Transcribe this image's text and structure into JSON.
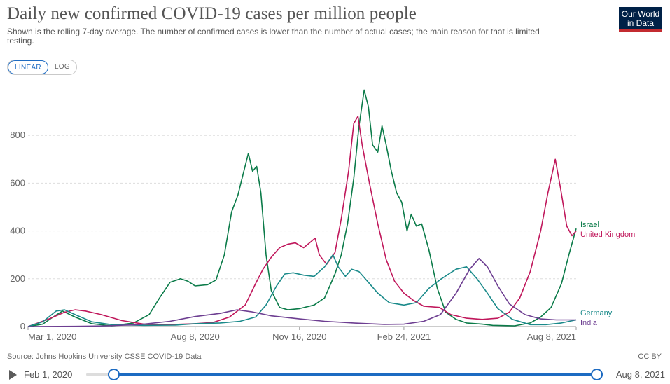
{
  "header": {
    "title": "Daily new confirmed COVID-19 cases per million people",
    "subtitle": "Shown is the rolling 7-day average. The number of confirmed cases is lower than the number of actual cases; the main reason for that is limited testing.",
    "logo": "Our World in Data"
  },
  "controls": {
    "linear_label": "LINEAR",
    "log_label": "LOG"
  },
  "footer": {
    "source": "Source: Johns Hopkins University CSSE COVID-19 Data",
    "license": "CC BY"
  },
  "timeline": {
    "start_label": "Feb 1, 2020",
    "end_label": "Aug 8, 2021"
  },
  "colors": {
    "Israel": "#0b7b49",
    "United Kingdom": "#c0175b",
    "Germany": "#1a8a8a",
    "India": "#6d3e91",
    "grid": "#dddddd",
    "axis_text": "#666666"
  },
  "chart_data": {
    "type": "line",
    "title": "Daily new confirmed COVID-19 cases per million people",
    "xlabel": "",
    "ylabel": "",
    "ylim": [
      0,
      1000
    ],
    "yticks": [
      0,
      200,
      400,
      600,
      800
    ],
    "xlim": [
      "2020-03-01",
      "2021-08-08"
    ],
    "xticks": [
      {
        "date": "2020-03-01",
        "label": "Mar 1, 2020"
      },
      {
        "date": "2020-08-08",
        "label": "Aug 8, 2020"
      },
      {
        "date": "2020-11-16",
        "label": "Nov 16, 2020"
      },
      {
        "date": "2021-02-24",
        "label": "Feb 24, 2021"
      },
      {
        "date": "2021-08-08",
        "label": "Aug 8, 2021"
      }
    ],
    "grid": true,
    "legend": "right-end labels",
    "series": [
      {
        "name": "Israel",
        "points": [
          [
            "2020-03-01",
            0
          ],
          [
            "2020-03-15",
            10
          ],
          [
            "2020-03-25",
            40
          ],
          [
            "2020-04-03",
            65
          ],
          [
            "2020-04-15",
            40
          ],
          [
            "2020-05-01",
            12
          ],
          [
            "2020-05-20",
            3
          ],
          [
            "2020-06-10",
            15
          ],
          [
            "2020-06-25",
            50
          ],
          [
            "2020-07-05",
            120
          ],
          [
            "2020-07-15",
            185
          ],
          [
            "2020-07-25",
            200
          ],
          [
            "2020-08-01",
            190
          ],
          [
            "2020-08-08",
            170
          ],
          [
            "2020-08-20",
            175
          ],
          [
            "2020-08-28",
            195
          ],
          [
            "2020-09-05",
            300
          ],
          [
            "2020-09-12",
            480
          ],
          [
            "2020-09-18",
            550
          ],
          [
            "2020-09-22",
            620
          ],
          [
            "2020-09-28",
            725
          ],
          [
            "2020-10-02",
            650
          ],
          [
            "2020-10-06",
            670
          ],
          [
            "2020-10-10",
            560
          ],
          [
            "2020-10-15",
            300
          ],
          [
            "2020-10-20",
            150
          ],
          [
            "2020-10-28",
            80
          ],
          [
            "2020-11-05",
            70
          ],
          [
            "2020-11-16",
            75
          ],
          [
            "2020-11-30",
            90
          ],
          [
            "2020-12-10",
            120
          ],
          [
            "2020-12-20",
            220
          ],
          [
            "2020-12-26",
            300
          ],
          [
            "2021-01-01",
            430
          ],
          [
            "2021-01-07",
            620
          ],
          [
            "2021-01-12",
            840
          ],
          [
            "2021-01-17",
            990
          ],
          [
            "2021-01-21",
            920
          ],
          [
            "2021-01-25",
            760
          ],
          [
            "2021-01-30",
            730
          ],
          [
            "2021-02-03",
            840
          ],
          [
            "2021-02-07",
            760
          ],
          [
            "2021-02-12",
            650
          ],
          [
            "2021-02-17",
            560
          ],
          [
            "2021-02-22",
            520
          ],
          [
            "2021-02-27",
            400
          ],
          [
            "2021-03-03",
            470
          ],
          [
            "2021-03-08",
            420
          ],
          [
            "2021-03-13",
            430
          ],
          [
            "2021-03-20",
            320
          ],
          [
            "2021-03-28",
            160
          ],
          [
            "2021-04-05",
            60
          ],
          [
            "2021-04-15",
            30
          ],
          [
            "2021-04-25",
            15
          ],
          [
            "2021-05-10",
            10
          ],
          [
            "2021-05-20",
            5
          ],
          [
            "2021-06-10",
            3
          ],
          [
            "2021-06-25",
            15
          ],
          [
            "2021-07-05",
            40
          ],
          [
            "2021-07-15",
            80
          ],
          [
            "2021-07-25",
            180
          ],
          [
            "2021-08-01",
            300
          ],
          [
            "2021-08-08",
            410
          ]
        ]
      },
      {
        "name": "United Kingdom",
        "points": [
          [
            "2020-03-01",
            0
          ],
          [
            "2020-03-20",
            30
          ],
          [
            "2020-04-05",
            60
          ],
          [
            "2020-04-15",
            70
          ],
          [
            "2020-04-25",
            65
          ],
          [
            "2020-05-10",
            50
          ],
          [
            "2020-05-30",
            25
          ],
          [
            "2020-06-20",
            10
          ],
          [
            "2020-07-15",
            8
          ],
          [
            "2020-08-08",
            12
          ],
          [
            "2020-08-25",
            17
          ],
          [
            "2020-09-10",
            40
          ],
          [
            "2020-09-25",
            90
          ],
          [
            "2020-10-05",
            180
          ],
          [
            "2020-10-12",
            240
          ],
          [
            "2020-10-20",
            290
          ],
          [
            "2020-10-28",
            330
          ],
          [
            "2020-11-05",
            345
          ],
          [
            "2020-11-12",
            350
          ],
          [
            "2020-11-20",
            330
          ],
          [
            "2020-11-27",
            355
          ],
          [
            "2020-12-01",
            370
          ],
          [
            "2020-12-05",
            300
          ],
          [
            "2020-12-12",
            260
          ],
          [
            "2020-12-20",
            310
          ],
          [
            "2020-12-26",
            450
          ],
          [
            "2021-01-02",
            650
          ],
          [
            "2021-01-07",
            850
          ],
          [
            "2021-01-11",
            880
          ],
          [
            "2021-01-15",
            760
          ],
          [
            "2021-01-22",
            600
          ],
          [
            "2021-01-30",
            430
          ],
          [
            "2021-02-07",
            280
          ],
          [
            "2021-02-15",
            190
          ],
          [
            "2021-02-24",
            140
          ],
          [
            "2021-03-05",
            110
          ],
          [
            "2021-03-15",
            85
          ],
          [
            "2021-03-30",
            80
          ],
          [
            "2021-04-10",
            50
          ],
          [
            "2021-04-25",
            35
          ],
          [
            "2021-05-10",
            30
          ],
          [
            "2021-05-25",
            35
          ],
          [
            "2021-06-05",
            60
          ],
          [
            "2021-06-15",
            120
          ],
          [
            "2021-06-25",
            230
          ],
          [
            "2021-07-05",
            400
          ],
          [
            "2021-07-12",
            560
          ],
          [
            "2021-07-19",
            700
          ],
          [
            "2021-07-24",
            580
          ],
          [
            "2021-07-30",
            420
          ],
          [
            "2021-08-04",
            380
          ],
          [
            "2021-08-08",
            400
          ]
        ]
      },
      {
        "name": "Germany",
        "points": [
          [
            "2020-03-01",
            0
          ],
          [
            "2020-03-15",
            20
          ],
          [
            "2020-03-28",
            65
          ],
          [
            "2020-04-05",
            70
          ],
          [
            "2020-04-15",
            50
          ],
          [
            "2020-05-01",
            20
          ],
          [
            "2020-05-20",
            8
          ],
          [
            "2020-06-20",
            5
          ],
          [
            "2020-07-20",
            6
          ],
          [
            "2020-08-08",
            12
          ],
          [
            "2020-09-01",
            15
          ],
          [
            "2020-09-20",
            22
          ],
          [
            "2020-10-05",
            40
          ],
          [
            "2020-10-15",
            90
          ],
          [
            "2020-10-25",
            170
          ],
          [
            "2020-11-02",
            220
          ],
          [
            "2020-11-10",
            225
          ],
          [
            "2020-11-20",
            215
          ],
          [
            "2020-11-30",
            210
          ],
          [
            "2020-12-10",
            250
          ],
          [
            "2020-12-18",
            300
          ],
          [
            "2020-12-23",
            250
          ],
          [
            "2020-12-30",
            210
          ],
          [
            "2021-01-05",
            240
          ],
          [
            "2021-01-12",
            230
          ],
          [
            "2021-01-20",
            190
          ],
          [
            "2021-01-30",
            140
          ],
          [
            "2021-02-10",
            100
          ],
          [
            "2021-02-24",
            90
          ],
          [
            "2021-03-08",
            100
          ],
          [
            "2021-03-20",
            160
          ],
          [
            "2021-04-01",
            200
          ],
          [
            "2021-04-15",
            240
          ],
          [
            "2021-04-25",
            250
          ],
          [
            "2021-05-05",
            200
          ],
          [
            "2021-05-15",
            140
          ],
          [
            "2021-05-25",
            75
          ],
          [
            "2021-06-08",
            30
          ],
          [
            "2021-06-25",
            8
          ],
          [
            "2021-07-10",
            8
          ],
          [
            "2021-07-25",
            15
          ],
          [
            "2021-08-08",
            28
          ]
        ]
      },
      {
        "name": "India",
        "points": [
          [
            "2020-03-01",
            0
          ],
          [
            "2020-04-15",
            1
          ],
          [
            "2020-05-15",
            3
          ],
          [
            "2020-06-15",
            8
          ],
          [
            "2020-07-15",
            22
          ],
          [
            "2020-08-08",
            42
          ],
          [
            "2020-09-01",
            55
          ],
          [
            "2020-09-17",
            70
          ],
          [
            "2020-10-01",
            62
          ],
          [
            "2020-10-20",
            45
          ],
          [
            "2020-11-16",
            32
          ],
          [
            "2020-12-10",
            22
          ],
          [
            "2021-01-10",
            14
          ],
          [
            "2021-02-05",
            9
          ],
          [
            "2021-02-24",
            10
          ],
          [
            "2021-03-15",
            22
          ],
          [
            "2021-03-31",
            50
          ],
          [
            "2021-04-15",
            140
          ],
          [
            "2021-04-28",
            240
          ],
          [
            "2021-05-07",
            285
          ],
          [
            "2021-05-15",
            250
          ],
          [
            "2021-05-25",
            170
          ],
          [
            "2021-06-05",
            95
          ],
          [
            "2021-06-20",
            50
          ],
          [
            "2021-07-05",
            32
          ],
          [
            "2021-07-20",
            28
          ],
          [
            "2021-08-08",
            28
          ]
        ]
      }
    ]
  }
}
